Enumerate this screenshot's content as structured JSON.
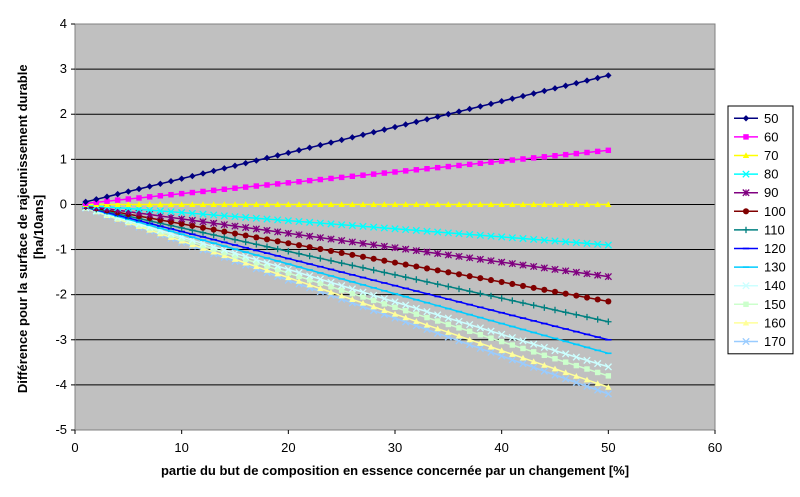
{
  "chart_data": {
    "type": "line",
    "title": "",
    "xlabel": "partie du but de composition en essence concernée par un changement [%]",
    "ylabel_lines": [
      "Différence pour la surface de rajeunissement durable",
      "[ha/10ans]"
    ],
    "xlim": [
      0,
      60
    ],
    "ylim": [
      -5,
      4
    ],
    "xticks": [
      "0",
      "10",
      "20",
      "30",
      "40",
      "50",
      "60"
    ],
    "yticks": [
      "-5",
      "-4",
      "-3",
      "-2",
      "-1",
      "0",
      "1",
      "2",
      "3",
      "4"
    ],
    "grid": "horizontal",
    "legend_position": "right",
    "plot_background": "#c0c0c0",
    "x": {
      "start": 1,
      "end": 50,
      "step": 1
    },
    "series": [
      {
        "name": "50",
        "color": "#000080",
        "marker": "diamond",
        "start_value": 0.057,
        "end_value": 2.86
      },
      {
        "name": "60",
        "color": "#ff00ff",
        "marker": "square",
        "start_value": 0.024,
        "end_value": 1.2
      },
      {
        "name": "70",
        "color": "#ffff00",
        "marker": "triangle",
        "start_value": 0.0,
        "end_value": 0.0
      },
      {
        "name": "80",
        "color": "#00ffff",
        "marker": "x",
        "start_value": -0.018,
        "end_value": -0.9
      },
      {
        "name": "90",
        "color": "#800080",
        "marker": "star",
        "start_value": -0.032,
        "end_value": -1.6
      },
      {
        "name": "100",
        "color": "#800000",
        "marker": "circle",
        "start_value": -0.043,
        "end_value": -2.15
      },
      {
        "name": "110",
        "color": "#008080",
        "marker": "plus",
        "start_value": -0.052,
        "end_value": -2.6
      },
      {
        "name": "120",
        "color": "#0000ff",
        "marker": "dash",
        "start_value": -0.06,
        "end_value": -3.0
      },
      {
        "name": "130",
        "color": "#00ccff",
        "marker": "dash",
        "start_value": -0.066,
        "end_value": -3.3
      },
      {
        "name": "140",
        "color": "#ccffff",
        "marker": "x",
        "start_value": -0.072,
        "end_value": -3.6
      },
      {
        "name": "150",
        "color": "#ccffcc",
        "marker": "square",
        "start_value": -0.076,
        "end_value": -3.8
      },
      {
        "name": "160",
        "color": "#ffff99",
        "marker": "triangle",
        "start_value": -0.081,
        "end_value": -4.05
      },
      {
        "name": "170",
        "color": "#99ccff",
        "marker": "x",
        "start_value": -0.084,
        "end_value": -4.2
      }
    ]
  }
}
